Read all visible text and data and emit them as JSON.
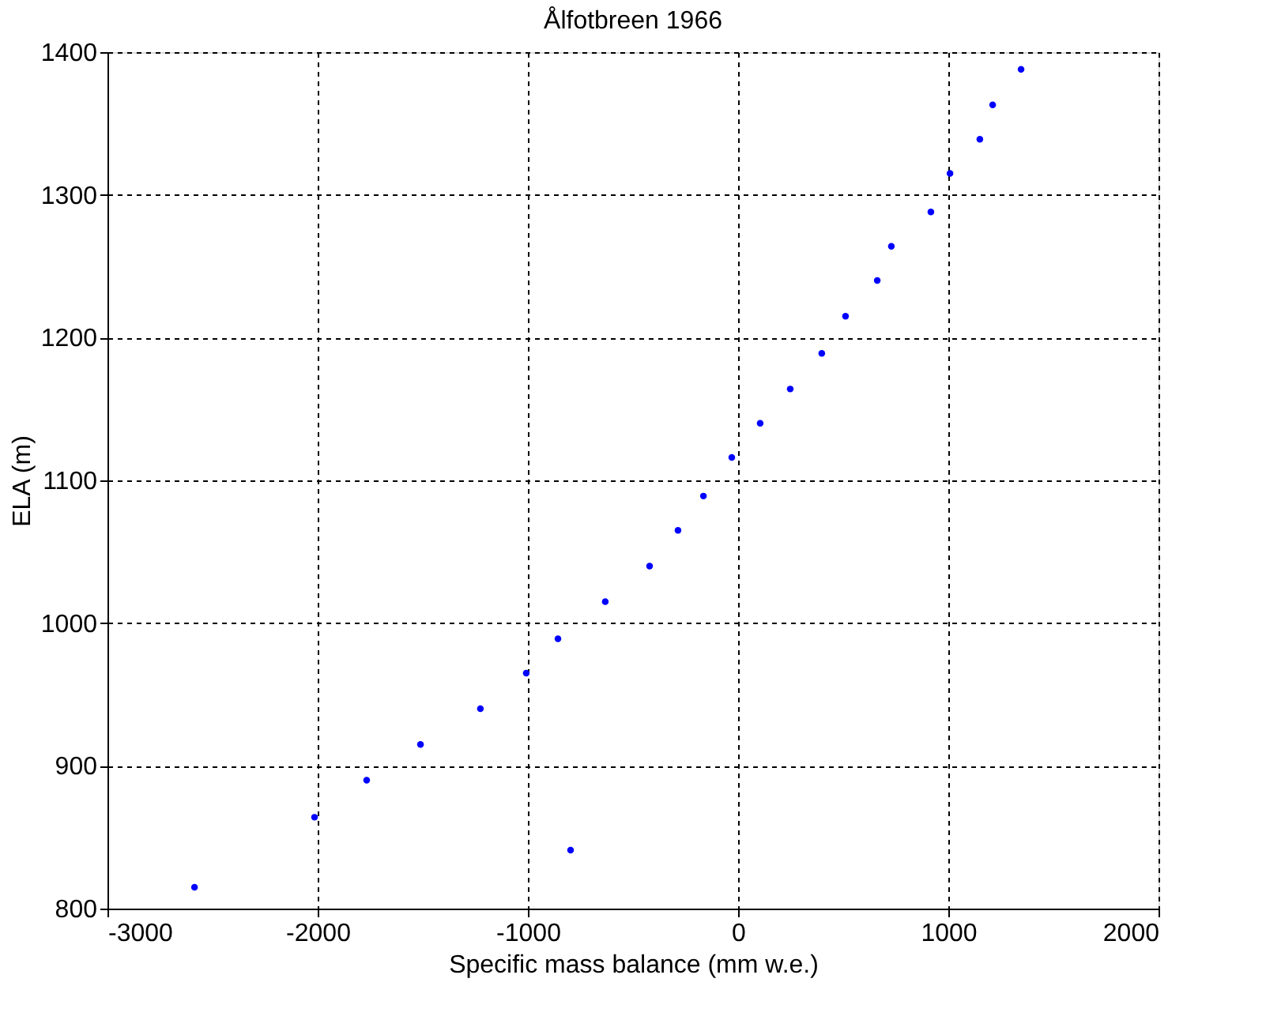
{
  "chart_data": {
    "type": "scatter",
    "title": "Ålfotbreen 1966",
    "xlabel": "Specific mass balance (mm w.e.)",
    "ylabel": "ELA (m)",
    "x": [
      -2586,
      -2015,
      -1767,
      -1511,
      -1226,
      -1008,
      -857,
      -797,
      -632,
      -421,
      -286,
      -165,
      -30,
      105,
      248,
      398,
      511,
      662,
      729,
      917,
      1008,
      1150,
      1211,
      1346
    ],
    "series": [
      {
        "color": "#0000ff",
        "values": [
          815,
          864,
          890,
          915,
          940,
          965,
          989,
          841,
          1015,
          1040,
          1065,
          1089,
          1116,
          1140,
          1164,
          1189,
          1215,
          1240,
          1264,
          1288,
          1315,
          1339,
          1363,
          1388
        ]
      }
    ],
    "xlim": [
      -3000,
      2000
    ],
    "xticks": [
      -3000,
      -2000,
      -1000,
      0,
      1000,
      2000
    ],
    "ylim": [
      800,
      1400
    ],
    "yticks": [
      800,
      900,
      1000,
      1100,
      1200,
      1300,
      1400
    ],
    "grid": true,
    "marker": "circle"
  }
}
